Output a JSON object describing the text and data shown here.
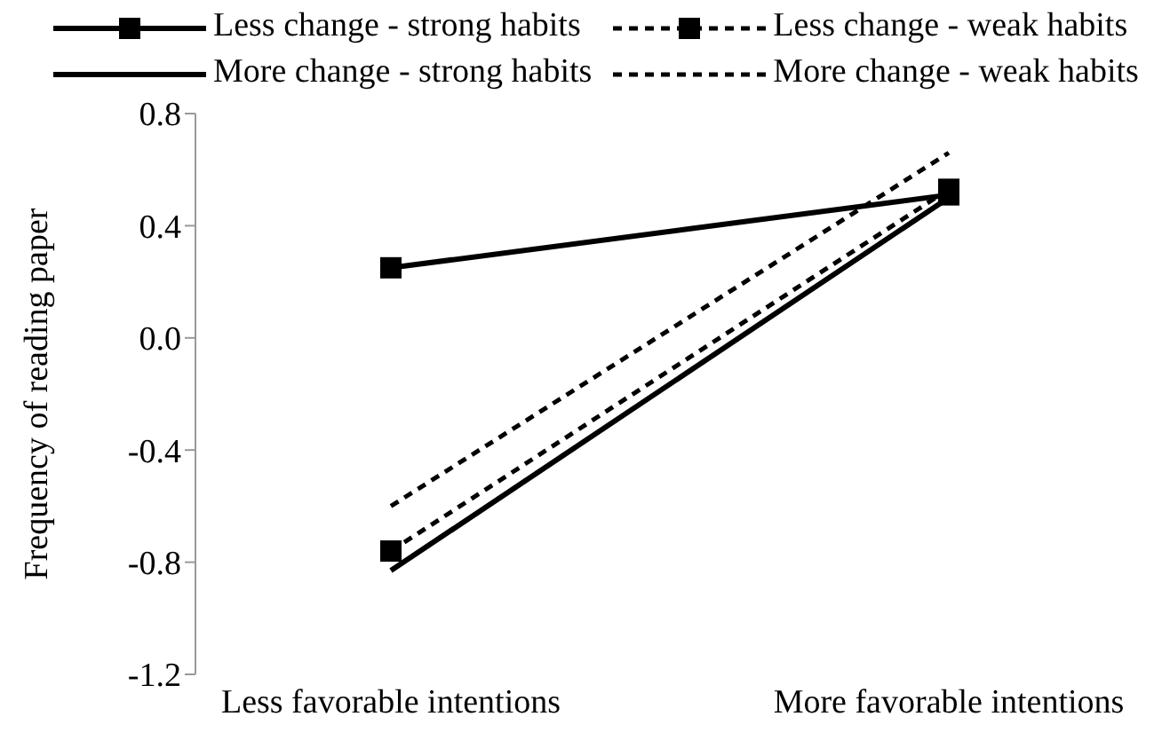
{
  "chart_data": {
    "type": "line",
    "ylabel": "Frequency of reading paper",
    "categories": [
      "Less favorable intentions",
      "More favorable intentions"
    ],
    "ylim": [
      -1.2,
      0.8
    ],
    "yticks": [
      -1.2,
      -0.8,
      -0.4,
      {
        "value": 0,
        "label": "0.0"
      },
      0.4,
      0.8
    ],
    "grid": false,
    "legend": "top",
    "series": [
      {
        "name": "Less change - strong habits",
        "color": "#000000",
        "values": [
          0.25,
          0.51
        ],
        "marker": "square",
        "line_style": "solid"
      },
      {
        "name": "Less change - weak habits",
        "color": "#000000",
        "values": [
          -0.76,
          0.53
        ],
        "marker": "square",
        "line_style": "dashed"
      },
      {
        "name": "More change - strong habits",
        "color": "#000000",
        "values": [
          -0.83,
          0.5
        ],
        "marker": "none",
        "line_style": "solid"
      },
      {
        "name": "More change - weak habits",
        "color": "#000000",
        "values": [
          -0.6,
          0.66
        ],
        "marker": "none",
        "line_style": "dashed"
      }
    ]
  }
}
